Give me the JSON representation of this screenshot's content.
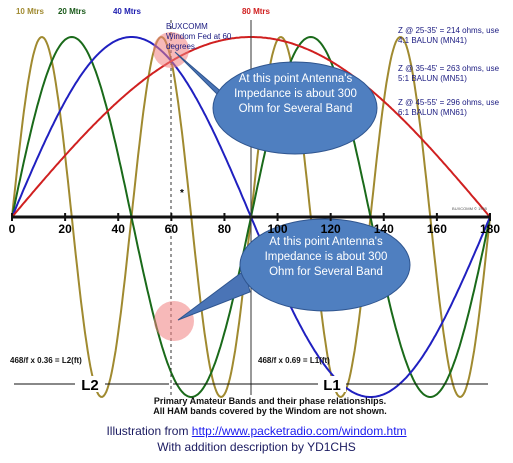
{
  "bands": [
    "10 Mtrs",
    "20 Mtrs",
    "40 Mtrs",
    "80 Mtrs"
  ],
  "feed_note": "BUXCOMM Windom Fed at 60 degrees.",
  "notes": [
    "Z @ 25-35' = 214 ohms, use 4:1 BALUN (MN41)",
    "Z @ 35-45' = 263 ohms, use 5:1 BALUN (MN51)",
    "Z @ 45-55' = 296 ohms, use 6:1 BALUN (MN61)"
  ],
  "callouts": [
    "At this point Antenna's Impedance is about 300 Ohm for Several Band",
    "At this point Antenna's Impedance is about 300 Ohm for Several Band"
  ],
  "axis_labels": [
    "0",
    "20",
    "40",
    "60",
    "80",
    "100",
    "120",
    "140",
    "160",
    "180"
  ],
  "feed_marker": "*",
  "copyright": "BUXCOMM © 1995",
  "formulas": [
    "468/f x 0.36 = L2(ft)",
    "468/f x 0.69 = L1(ft)"
  ],
  "lengths": [
    "L2",
    "L1"
  ],
  "caption": [
    "Primary Amateur Bands and their phase relationships.",
    "All HAM bands covered by the Windom are not shown."
  ],
  "footer": {
    "prefix": "Illustration from ",
    "link": "http://www.packetradio.com/windom.htm",
    "line2": "With addition description by YD1CHS"
  }
}
